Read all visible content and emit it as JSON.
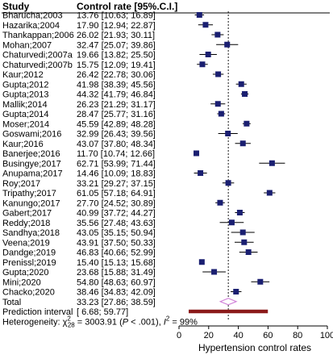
{
  "chart_data": {
    "type": "forest",
    "header": {
      "study": "Study",
      "estimate": "Control rate [95%.C.I.]"
    },
    "studies": [
      {
        "label": "Bharucha;2003",
        "ci_text": "13.76 [10.63; 16.89]",
        "est": 13.76,
        "lo": 10.63,
        "hi": 16.89
      },
      {
        "label": "Hazarika;2004",
        "ci_text": "17.90 [12.94; 22.87]",
        "est": 17.9,
        "lo": 12.94,
        "hi": 22.87
      },
      {
        "label": "Thankappan;2006",
        "ci_text": "26.02 [21.93; 30.11]",
        "est": 26.02,
        "lo": 21.93,
        "hi": 30.11
      },
      {
        "label": "Mohan;2007",
        "ci_text": "32.47 [25.07; 39.86]",
        "est": 32.47,
        "lo": 25.07,
        "hi": 39.86
      },
      {
        "label": "Chaturvedi;2007a",
        "ci_text": "19.66 [13.82; 25.50]",
        "est": 19.66,
        "lo": 13.82,
        "hi": 25.5
      },
      {
        "label": "Chaturvedi;2007b",
        "ci_text": "15.75 [12.09; 19.41]",
        "est": 15.75,
        "lo": 12.09,
        "hi": 19.41
      },
      {
        "label": "Kaur;2012",
        "ci_text": "26.42 [22.78; 30.06]",
        "est": 26.42,
        "lo": 22.78,
        "hi": 30.06
      },
      {
        "label": "Gupta;2012",
        "ci_text": "41.98 [38.39; 45.56]",
        "est": 41.98,
        "lo": 38.39,
        "hi": 45.56
      },
      {
        "label": "Gupta;2013",
        "ci_text": "44.32 [41.79; 46.84]",
        "est": 44.32,
        "lo": 41.79,
        "hi": 46.84
      },
      {
        "label": "Mallik;2014",
        "ci_text": "26.23 [21.29; 31.17]",
        "est": 26.23,
        "lo": 21.29,
        "hi": 31.17
      },
      {
        "label": "Gupta;2014",
        "ci_text": "28.47 [25.77; 31.16]",
        "est": 28.47,
        "lo": 25.77,
        "hi": 31.16
      },
      {
        "label": "Moser;2014",
        "ci_text": "45.59 [42.89; 48.28]",
        "est": 45.59,
        "lo": 42.89,
        "hi": 48.28
      },
      {
        "label": "Goswami;2016",
        "ci_text": "32.99 [26.43; 39.56]",
        "est": 32.99,
        "lo": 26.43,
        "hi": 39.56
      },
      {
        "label": "Kaur;2016",
        "ci_text": "43.07 [37.80; 48.34]",
        "est": 43.07,
        "lo": 37.8,
        "hi": 48.34
      },
      {
        "label": "Banerjee;2016",
        "ci_text": "11.70 [10.74; 12.66]",
        "est": 11.7,
        "lo": 10.74,
        "hi": 12.66
      },
      {
        "label": "Busingye;2017",
        "ci_text": "62.71 [53.99; 71.44]",
        "est": 62.71,
        "lo": 53.99,
        "hi": 71.44
      },
      {
        "label": "Anupama;2017",
        "ci_text": "14.46 [10.09; 18.83]",
        "est": 14.46,
        "lo": 10.09,
        "hi": 18.83
      },
      {
        "label": "Roy;2017",
        "ci_text": "33.21 [29.27; 37.15]",
        "est": 33.21,
        "lo": 29.27,
        "hi": 37.15
      },
      {
        "label": "Tripathy;2017",
        "ci_text": "61.05 [57.18; 64.91]",
        "est": 61.05,
        "lo": 57.18,
        "hi": 64.91
      },
      {
        "label": "Kanungo;2017",
        "ci_text": "27.70 [24.52; 30.89]",
        "est": 27.7,
        "lo": 24.52,
        "hi": 30.89
      },
      {
        "label": "Gabert;2017",
        "ci_text": "40.99 [37.72; 44.27]",
        "est": 40.99,
        "lo": 37.72,
        "hi": 44.27
      },
      {
        "label": "Reddy;2018",
        "ci_text": "35.56 [27.48; 43.63]",
        "est": 35.56,
        "lo": 27.48,
        "hi": 43.63
      },
      {
        "label": "Sandhya;2018",
        "ci_text": "43.05 [35.15; 50.94]",
        "est": 43.05,
        "lo": 35.15,
        "hi": 50.94
      },
      {
        "label": "Veena;2019",
        "ci_text": "43.91 [37.50; 50.33]",
        "est": 43.91,
        "lo": 37.5,
        "hi": 50.33
      },
      {
        "label": "Dandge;2019",
        "ci_text": "46.83 [40.66; 52.99]",
        "est": 46.83,
        "lo": 40.66,
        "hi": 52.99
      },
      {
        "label": "Prenissl;2019",
        "ci_text": "15.40 [15.13; 15.68]",
        "est": 15.4,
        "lo": 15.13,
        "hi": 15.68
      },
      {
        "label": "Gupta;2020",
        "ci_text": "23.68 [15.88; 31.49]",
        "est": 23.68,
        "lo": 15.88,
        "hi": 31.49
      },
      {
        "label": "Mini;2020",
        "ci_text": "54.80 [48.63; 60.97]",
        "est": 54.8,
        "lo": 48.63,
        "hi": 60.97
      },
      {
        "label": "Chacko;2020",
        "ci_text": "38.46 [34.83; 42.09]",
        "est": 38.46,
        "lo": 34.83,
        "hi": 42.09
      }
    ],
    "total": {
      "label": "Total",
      "ci_text": "33.23 [27.86; 38.59]",
      "est": 33.23,
      "lo": 27.86,
      "hi": 38.59
    },
    "prediction_interval": {
      "label": "Prediction interval",
      "ci_text": "[ 6.68; 59.77]",
      "lo": 6.68,
      "hi": 59.77
    },
    "heterogeneity": {
      "prefix": "Heterogeneity: χ",
      "sub": "28",
      "sup": "2",
      "body": " = 3003.91 (",
      "p_italic": "P",
      "p_rest": " < .001), ",
      "i_italic": "I",
      "i_sup": "2",
      "i_rest": " = 99%"
    },
    "x_axis": {
      "label": "Hypertension control rates",
      "ticks": [
        0,
        20,
        40,
        60,
        80,
        100
      ],
      "range": [
        0,
        100
      ]
    },
    "reference_line": 33.23,
    "colors": {
      "square": "#1a1f71",
      "line": "#000000",
      "diamond": "#d080d8",
      "prediction_bar": "#8b1a1a",
      "reference": "#000000"
    }
  }
}
